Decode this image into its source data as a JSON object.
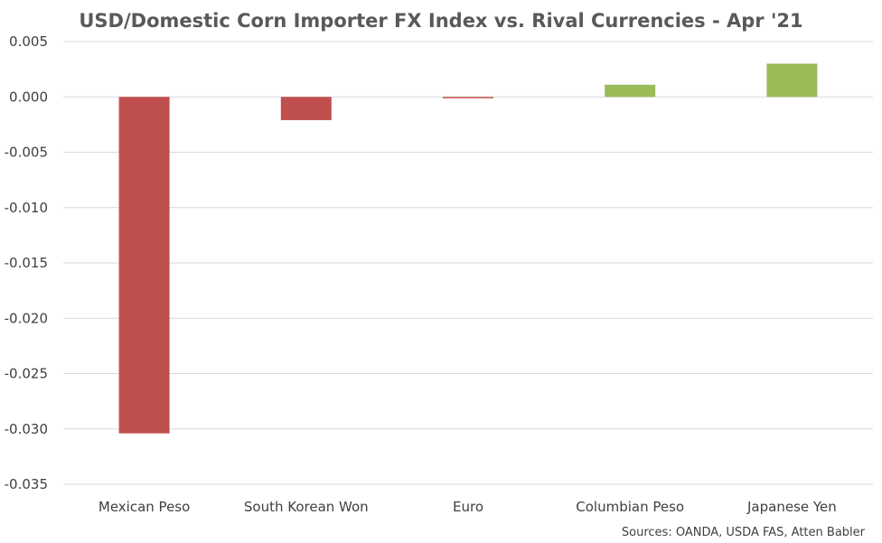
{
  "chart_data": {
    "type": "bar",
    "title": "USD/Domestic Corn Importer FX Index vs. Rival Currencies - Apr '21",
    "xlabel": "",
    "ylabel": "",
    "categories": [
      "Mexican Peso",
      "South Korean Won",
      "Euro",
      "Columbian Peso",
      "Japanese Yen"
    ],
    "values": [
      -0.0304,
      -0.0021,
      -0.0001,
      0.0011,
      0.003
    ],
    "ylim": [
      -0.035,
      0.005
    ],
    "yticks": [
      0.005,
      0.0,
      -0.005,
      -0.01,
      -0.015,
      -0.02,
      -0.025,
      -0.03,
      -0.035
    ],
    "ytick_labels": [
      "0.005",
      "0.000",
      "-0.005",
      "-0.010",
      "-0.015",
      "-0.020",
      "-0.025",
      "-0.030",
      "-0.035"
    ],
    "grid": true,
    "legend": false,
    "colors": {
      "negative": "#c0504d",
      "positive": "#9bbb59",
      "grid": "#d9d9d9"
    },
    "source_note": "Sources: OANDA, USDA FAS, Atten Babler"
  }
}
